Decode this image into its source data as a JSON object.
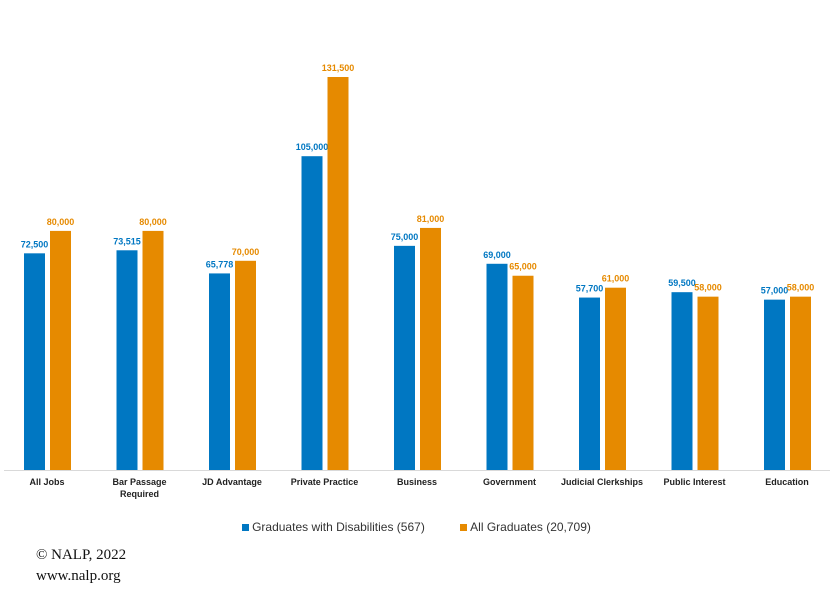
{
  "chart_data": {
    "type": "bar",
    "title": "",
    "xlabel": "",
    "ylabel": "",
    "ylim": [
      0,
      157000
    ],
    "grid": false,
    "legend_placement": "bottom",
    "categories": [
      "All Jobs",
      "Bar Passage Required",
      "JD Advantage",
      "Private Practice",
      "Business",
      "Government",
      "Judicial Clerkships",
      "Public Interest",
      "Education"
    ],
    "category_lines": [
      [
        "All Jobs"
      ],
      [
        "Bar Passage",
        "Required"
      ],
      [
        "JD Advantage"
      ],
      [
        "Private Practice"
      ],
      [
        "Business"
      ],
      [
        "Government"
      ],
      [
        "Judicial Clerkships"
      ],
      [
        "Public Interest"
      ],
      [
        "Education"
      ]
    ],
    "series": [
      {
        "name": "Graduates with Disabilities (567)",
        "color": "#0077c2",
        "values": [
          72500,
          73515,
          65778,
          105000,
          75000,
          69000,
          57700,
          59500,
          57000
        ],
        "labels": [
          "72,500",
          "73,515",
          "65,778",
          "105,000",
          "75,000",
          "69,000",
          "57,700",
          "59,500",
          "57,000"
        ]
      },
      {
        "name": "All Graduates (20,709)",
        "color": "#e68a00",
        "values": [
          80000,
          80000,
          70000,
          131500,
          81000,
          65000,
          61000,
          58000,
          58000
        ],
        "labels": [
          "80,000",
          "80,000",
          "70,000",
          "131,500",
          "81,000",
          "65,000",
          "61,000",
          "58,000",
          "58,000"
        ]
      }
    ]
  },
  "footer": {
    "copyright": "© NALP, 2022",
    "url": "www.nalp.org"
  }
}
